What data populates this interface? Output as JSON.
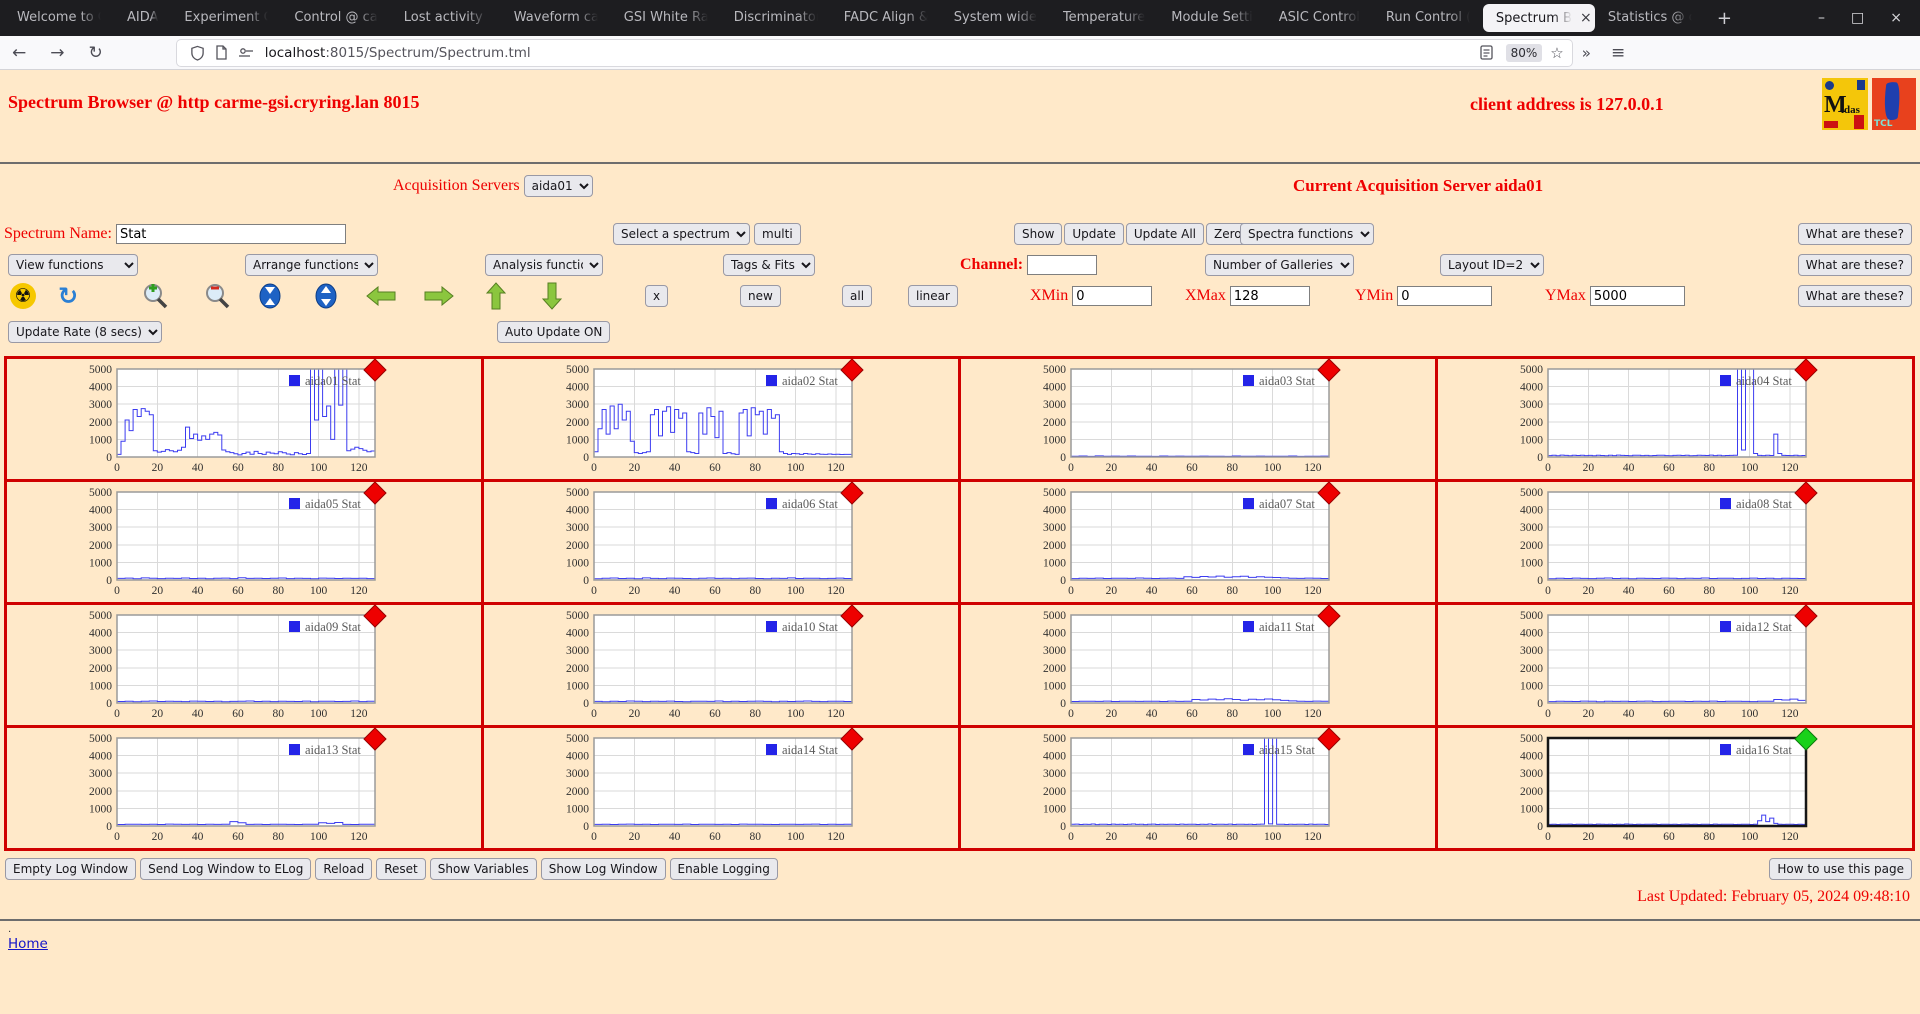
{
  "browser": {
    "tabs": [
      "Welcome to C",
      "AIDA",
      "Experiment C",
      "Control @ ca",
      "Lost activity n",
      "Waveform ca",
      "GSI White Ra",
      "Discriminator",
      "FADC Align &",
      "System wide",
      "Temperature",
      "Module Setti",
      "ASIC Control",
      "Run Control (",
      "Spectrum B",
      "Statistics @ c"
    ],
    "active_tab_index": 14,
    "url_host": "localhost",
    "url_path": ":8015/Spectrum/Spectrum.tml",
    "zoom_badge": "80%"
  },
  "icons": {
    "back": "←",
    "forward": "→",
    "reload": "↻",
    "star": "☆",
    "overflow": "»",
    "menu": "≡",
    "minimize": "–",
    "maximize": "□",
    "close": "×",
    "close_tab": "×",
    "new_tab": "+",
    "radiation": "☢",
    "refresh": "↻"
  },
  "header": {
    "title": "Spectrum Browser @ http carme-gsi.cryring.lan 8015",
    "client": "client address is 127.0.0.1",
    "logo_midas_m": "M",
    "logo_midas_idas": "idas",
    "logo_tcl": "TCL"
  },
  "controls": {
    "acq_label": "Acquisition Servers",
    "acq_select": "aida01",
    "current_server": "Current Acquisition Server aida01",
    "spectrum_name_label": "Spectrum Name:",
    "spectrum_name_value": "Stat",
    "select_spectrum": "Select a spectrum",
    "multi": "multi",
    "show": "Show",
    "update": "Update",
    "update_all": "Update All",
    "zero": "Zero",
    "spectra_functions": "Spectra functions",
    "what_are_these": "What are these?",
    "view_functions": "View functions",
    "arrange_functions": "Arrange functions",
    "analysis_functions": "Analysis functions",
    "tags_fits": "Tags & Fits",
    "channel_label": "Channel:",
    "channel_value": "",
    "number_of_galleries": "Number of Galleries",
    "layout_id": "Layout ID=2",
    "x_button": "x",
    "new_button": "new",
    "all_button": "all",
    "linear_button": "linear",
    "xmin_label": "XMin",
    "xmin": "0",
    "xmax_label": "XMax",
    "xmax": "128",
    "ymin_label": "YMin",
    "ymin": "0",
    "ymax_label": "YMax",
    "ymax": "5000",
    "update_rate": "Update Rate (8 secs)",
    "auto_update": "Auto Update ON"
  },
  "footer": {
    "buttons": [
      "Empty Log Window",
      "Send Log Window to ELog",
      "Reload",
      "Reset",
      "Show Variables",
      "Show Log Window",
      "Enable Logging"
    ],
    "help_button": "How to use this page",
    "last_updated": "Last Updated: February 05, 2024 09:48:10",
    "dot": ".",
    "home_link": "Home"
  },
  "chart_data": {
    "type": "line",
    "style": "step",
    "x_range": [
      0,
      128
    ],
    "y_range": [
      0,
      5000
    ],
    "x_ticks": [
      0,
      20,
      40,
      60,
      80,
      100,
      120
    ],
    "y_ticks": [
      0,
      1000,
      2000,
      3000,
      4000,
      5000
    ],
    "grid": true,
    "legend_position": "top-right",
    "line_color": "#3c3cf0",
    "charts": [
      {
        "legend": "aida01 Stat",
        "marker_color": "#ee0000",
        "selected": false,
        "values": [
          150,
          900,
          2100,
          1500,
          2700,
          2300,
          2750,
          2600,
          2400,
          350,
          280,
          320,
          420,
          350,
          300,
          380,
          550,
          1700,
          1050,
          1300,
          950,
          1200,
          1000,
          1300,
          1400,
          1250,
          400,
          300,
          250,
          180,
          120,
          200,
          280,
          160,
          320,
          200,
          150,
          280,
          220,
          180,
          300,
          240,
          170,
          130,
          250,
          180,
          140,
          200,
          5000,
          2100,
          5000,
          2300,
          2900,
          1000,
          5000,
          2950,
          5000,
          350,
          450,
          550,
          480,
          380,
          300,
          340
        ]
      },
      {
        "legend": "aida02 Stat",
        "marker_color": "#ee0000",
        "selected": false,
        "values": [
          300,
          1600,
          2700,
          1300,
          2900,
          1600,
          3000,
          2100,
          2600,
          900,
          250,
          200,
          250,
          300,
          2400,
          2700,
          1200,
          2600,
          2850,
          1400,
          2700,
          2200,
          2500,
          300,
          250,
          200,
          2500,
          1300,
          2800,
          2300,
          1100,
          2600,
          200,
          250,
          180,
          150,
          2500,
          2700,
          1200,
          2800,
          2400,
          2600,
          1300,
          2700,
          2200,
          2400,
          300,
          200,
          150,
          200,
          180,
          150,
          200,
          170,
          150,
          180,
          160,
          150,
          170,
          150,
          160,
          140,
          150,
          145
        ]
      },
      {
        "legend": "aida03 Stat",
        "marker_color": "#ee0000",
        "selected": false,
        "values": [
          40,
          55,
          35,
          60,
          45,
          50,
          38,
          58,
          42,
          48,
          36,
          55,
          40,
          50,
          45,
          38,
          52,
          42,
          48,
          35,
          55,
          40,
          45,
          50,
          38,
          48,
          42,
          55,
          36,
          45,
          40,
          50
        ]
      },
      {
        "legend": "aida04 Stat",
        "marker_color": "#ee0000",
        "selected": false,
        "values": [
          80,
          100,
          70,
          110,
          90,
          75,
          95,
          85,
          105,
          80,
          90,
          70,
          100,
          85,
          75,
          95,
          80,
          110,
          90,
          85,
          70,
          95,
          105,
          80,
          90,
          75,
          85,
          100,
          95,
          80,
          70,
          90,
          105,
          85,
          95,
          75,
          80,
          100,
          90,
          85,
          110,
          80,
          95,
          70,
          85,
          90,
          100,
          5000,
          400,
          5000,
          5000,
          200,
          90,
          80,
          100,
          85,
          1300,
          200,
          90,
          85,
          80,
          95,
          75,
          85
        ]
      },
      {
        "legend": "aida05 Stat",
        "marker_color": "#ee0000",
        "selected": false,
        "values": [
          90,
          110,
          75,
          120,
          95,
          80,
          105,
          90,
          115,
          85,
          100,
          70,
          95,
          110,
          80,
          125,
          90,
          105,
          85,
          95,
          115,
          80,
          100,
          90,
          75,
          110,
          95,
          85,
          105,
          90,
          100,
          80
        ]
      },
      {
        "legend": "aida06 Stat",
        "marker_color": "#ee0000",
        "selected": false,
        "values": [
          70,
          95,
          115,
          85,
          105,
          75,
          120,
          90,
          80,
          110,
          95,
          85,
          70,
          100,
          115,
          90,
          105,
          80,
          95,
          110,
          85,
          75,
          100,
          90,
          120,
          85,
          95,
          105,
          80,
          90,
          110,
          85
        ]
      },
      {
        "legend": "aida07 Stat",
        "marker_color": "#ee0000",
        "selected": false,
        "values": [
          80,
          100,
          90,
          110,
          85,
          95,
          105,
          90,
          115,
          100,
          85,
          95,
          110,
          90,
          180,
          150,
          200,
          170,
          220,
          160,
          190,
          210,
          150,
          180,
          160,
          140,
          120,
          100,
          90,
          110,
          95,
          85
        ]
      },
      {
        "legend": "aida08 Stat",
        "marker_color": "#ee0000",
        "selected": false,
        "values": [
          75,
          95,
          85,
          110,
          90,
          80,
          100,
          115,
          85,
          95,
          75,
          105,
          90,
          85,
          110,
          95,
          80,
          100,
          90,
          115,
          85,
          95,
          105,
          80,
          90,
          110,
          85,
          95,
          75,
          100,
          90,
          85
        ]
      },
      {
        "legend": "aida09 Stat",
        "marker_color": "#ee0000",
        "selected": false,
        "values": [
          85,
          105,
          75,
          95,
          115,
          85,
          100,
          90,
          80,
          110,
          95,
          85,
          105,
          75,
          90,
          100,
          115,
          85,
          95,
          80,
          105,
          90,
          85,
          110,
          75,
          95,
          100,
          85,
          90,
          115,
          80,
          95
        ]
      },
      {
        "legend": "aida10 Stat",
        "marker_color": "#ee0000",
        "selected": false,
        "values": [
          90,
          75,
          105,
          85,
          115,
          95,
          80,
          100,
          90,
          110,
          85,
          75,
          95,
          105,
          90,
          115,
          80,
          95,
          85,
          100,
          110,
          90,
          75,
          95,
          85,
          105,
          115,
          90,
          80,
          100,
          95,
          85
        ]
      },
      {
        "legend": "aida11 Stat",
        "marker_color": "#ee0000",
        "selected": false,
        "values": [
          85,
          95,
          105,
          90,
          110,
          85,
          95,
          100,
          90,
          105,
          95,
          85,
          110,
          90,
          100,
          200,
          170,
          220,
          180,
          240,
          200,
          160,
          210,
          180,
          230,
          190,
          150,
          120,
          100,
          90,
          110,
          95
        ]
      },
      {
        "legend": "aida12 Stat",
        "marker_color": "#ee0000",
        "selected": false,
        "values": [
          80,
          100,
          90,
          85,
          110,
          95,
          75,
          105,
          90,
          100,
          85,
          95,
          110,
          80,
          90,
          105,
          95,
          85,
          100,
          90,
          110,
          85,
          95,
          105,
          90,
          80,
          100,
          95,
          200,
          170,
          220,
          150
        ]
      },
      {
        "legend": "aida13 Stat",
        "marker_color": "#ee0000",
        "selected": false,
        "values": [
          85,
          95,
          105,
          90,
          100,
          85,
          110,
          95,
          90,
          105,
          85,
          100,
          90,
          95,
          250,
          180,
          90,
          100,
          85,
          95,
          105,
          90,
          85,
          100,
          95,
          180,
          150,
          200,
          90,
          85,
          100,
          95
        ]
      },
      {
        "legend": "aida14 Stat",
        "marker_color": "#ee0000",
        "selected": false,
        "values": [
          90,
          105,
          85,
          95,
          110,
          90,
          100,
          85,
          95,
          105,
          90,
          110,
          85,
          100,
          95,
          90,
          105,
          85,
          110,
          95,
          100,
          90,
          85,
          105,
          95,
          90,
          100,
          110,
          85,
          95,
          90,
          100
        ]
      },
      {
        "legend": "aida15 Stat",
        "marker_color": "#ee0000",
        "selected": false,
        "values": [
          95,
          110,
          85,
          100,
          90,
          115,
          80,
          105,
          95,
          85,
          110,
          90,
          100,
          85,
          95,
          115,
          90,
          105,
          80,
          95,
          110,
          85,
          100,
          90,
          105,
          95,
          85,
          110,
          90,
          100,
          95,
          85,
          105,
          90,
          115,
          85,
          95,
          100,
          90,
          110,
          85,
          95,
          105,
          90,
          100,
          85,
          95,
          110,
          5000,
          120,
          5000,
          100,
          95,
          85,
          105,
          90,
          100,
          95,
          85,
          110,
          90,
          95,
          100,
          85
        ]
      },
      {
        "legend": "aida16 Stat",
        "marker_color": "#19d119",
        "selected": true,
        "values": [
          90,
          105,
          85,
          100,
          95,
          110,
          85,
          95,
          105,
          90,
          100,
          85,
          110,
          95,
          90,
          105,
          85,
          100,
          90,
          115,
          95,
          85,
          105,
          90,
          100,
          95,
          110,
          85,
          95,
          105,
          90,
          100,
          85,
          95,
          110,
          90,
          105,
          85,
          100,
          95,
          85,
          110,
          90,
          105,
          95,
          100,
          85,
          90,
          105,
          95,
          85,
          100,
          300,
          620,
          250,
          450,
          150,
          100,
          90,
          95,
          105,
          85,
          95,
          90
        ]
      }
    ]
  }
}
